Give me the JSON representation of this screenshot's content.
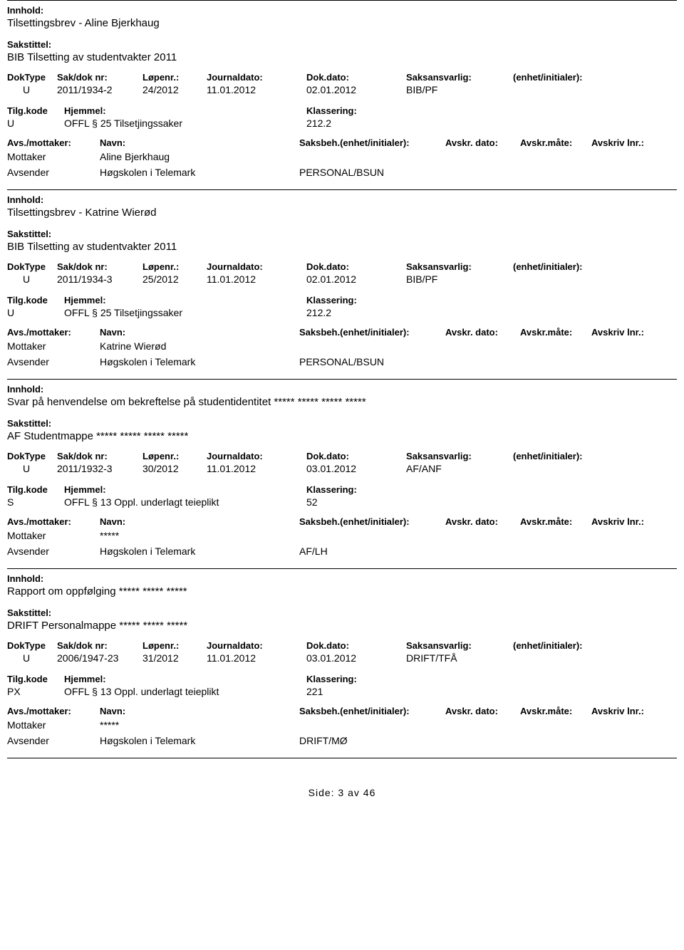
{
  "labels": {
    "innhold": "Innhold:",
    "sakstittel": "Sakstittel:",
    "doktype": "DokType",
    "saknr": "Sak/dok nr:",
    "lopenr": "Løpenr.:",
    "jdato": "Journaldato:",
    "ddato": "Dok.dato:",
    "ansvarlig": "Saksansvarlig:",
    "enhet": "(enhet/initialer):",
    "tilgkode": "Tilg.kode",
    "hjemmel": "Hjemmel:",
    "klassering": "Klassering:",
    "avsmottaker": "Avs./mottaker:",
    "navn": "Navn:",
    "saksbeh": "Saksbeh.(enhet/initialer):",
    "avskrdato": "Avskr. dato:",
    "avskrmate": "Avskr.måte:",
    "avskrivlnr": "Avskriv lnr.:",
    "mottaker": "Mottaker",
    "avsender": "Avsender"
  },
  "records": [
    {
      "innhold": "Tilsettingsbrev - Aline Bjerkhaug",
      "sakstittel": "BIB Tilsetting av studentvakter 2011",
      "doktype": "U",
      "saknr": "2011/1934-2",
      "lopenr": "24/2012",
      "jdato": "11.01.2012",
      "ddato": "02.01.2012",
      "ansvarlig": "BIB/PF",
      "tilgkode": "U",
      "hjemmel": "OFFL § 25 Tilsetjingssaker",
      "klassering": "212.2",
      "parties": [
        {
          "role": "Mottaker",
          "navn": "Aline Bjerkhaug",
          "code": ""
        },
        {
          "role": "Avsender",
          "navn": "Høgskolen i Telemark",
          "code": "PERSONAL/BSUN"
        }
      ]
    },
    {
      "innhold": "Tilsettingsbrev - Katrine Wierød",
      "sakstittel": "BIB Tilsetting av studentvakter 2011",
      "doktype": "U",
      "saknr": "2011/1934-3",
      "lopenr": "25/2012",
      "jdato": "11.01.2012",
      "ddato": "02.01.2012",
      "ansvarlig": "BIB/PF",
      "tilgkode": "U",
      "hjemmel": "OFFL § 25 Tilsetjingssaker",
      "klassering": "212.2",
      "parties": [
        {
          "role": "Mottaker",
          "navn": "Katrine Wierød",
          "code": ""
        },
        {
          "role": "Avsender",
          "navn": "Høgskolen i Telemark",
          "code": "PERSONAL/BSUN"
        }
      ]
    },
    {
      "innhold": "Svar på henvendelse om bekreftelse på studentidentitet ***** ***** ***** *****",
      "sakstittel": "AF Studentmappe ***** ***** ***** *****",
      "doktype": "U",
      "saknr": "2011/1932-3",
      "lopenr": "30/2012",
      "jdato": "11.01.2012",
      "ddato": "03.01.2012",
      "ansvarlig": "AF/ANF",
      "tilgkode": "S",
      "hjemmel": "OFFL § 13 Oppl. underlagt teieplikt",
      "klassering": "52",
      "parties": [
        {
          "role": "Mottaker",
          "navn": "*****",
          "code": ""
        },
        {
          "role": "Avsender",
          "navn": "Høgskolen i Telemark",
          "code": "AF/LH"
        }
      ]
    },
    {
      "innhold": "Rapport om oppfølging ***** ***** *****",
      "sakstittel": "DRIFT Personalmappe ***** ***** *****",
      "doktype": "U",
      "saknr": "2006/1947-23",
      "lopenr": "31/2012",
      "jdato": "11.01.2012",
      "ddato": "03.01.2012",
      "ansvarlig": "DRIFT/TFÅ",
      "tilgkode": "PX",
      "hjemmel": "OFFL § 13 Oppl. underlagt teieplikt",
      "klassering": "221",
      "parties": [
        {
          "role": "Mottaker",
          "navn": "*****",
          "code": ""
        },
        {
          "role": "Avsender",
          "navn": "Høgskolen i Telemark",
          "code": "DRIFT/MØ"
        }
      ]
    }
  ],
  "footer": "Side:  3  av  46"
}
